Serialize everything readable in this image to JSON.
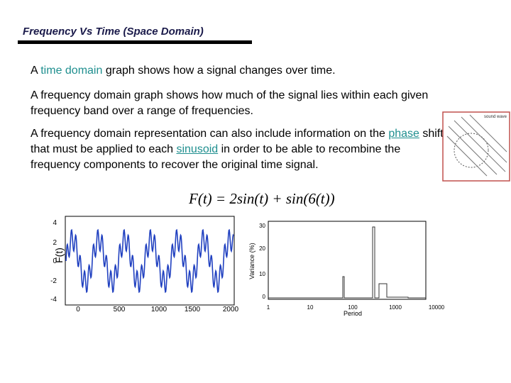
{
  "header": {
    "title": "Frequency Vs Time (Space Domain)"
  },
  "paragraphs": [
    [
      "A ",
      "time domain",
      " graph shows how a signal changes over time."
    ],
    [
      "A frequency domain graph shows how much of the signal lies within each given frequency band over a range of frequencies."
    ],
    [
      "A frequency domain representation can also include information on the ",
      "phase",
      " shift that must be applied to each ",
      "sinusoid",
      " in order to be able to recombine the frequency components to recover the original time signal."
    ]
  ],
  "formula": "F(t) = 2sin(t) + sin(6(t))",
  "side_image": {
    "label": "sound wave"
  },
  "figures": [
    {
      "y_label": "F(t)",
      "y_ticks": [
        "4",
        "2",
        "0",
        "-2",
        "-4"
      ],
      "x_ticks": [
        "0",
        "500",
        "1000",
        "1500",
        "2000"
      ]
    },
    {
      "y_label": "Variance (%)",
      "x_label": "Period",
      "y_ticks": [
        "30",
        "20",
        "10",
        "0"
      ],
      "x_ticks": [
        "1",
        "10",
        "100",
        "1000",
        "10000"
      ]
    }
  ]
}
